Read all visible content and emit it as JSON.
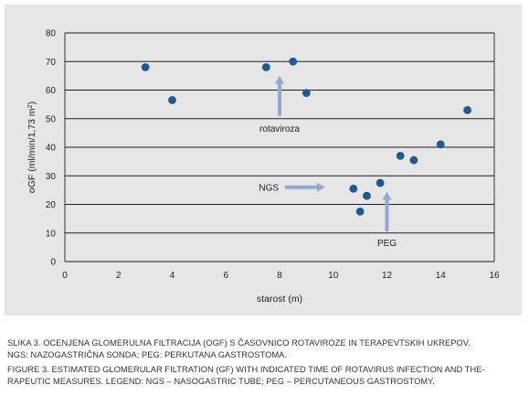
{
  "chart_data": {
    "type": "scatter",
    "xlabel": "starost (m)",
    "ylabel": "oGF (ml/min/1,73 m²)",
    "ylabel_main": "oGF (ml/min/1,73 m",
    "ylabel_sup": "2",
    "ylabel_close": ")",
    "xlim": [
      0,
      16
    ],
    "ylim": [
      0,
      80
    ],
    "x_ticks": [
      "0",
      "2",
      "4",
      "6",
      "8",
      "10",
      "12",
      "14",
      "16"
    ],
    "y_ticks": [
      "0",
      "10",
      "20",
      "30",
      "40",
      "50",
      "60",
      "70",
      "80"
    ],
    "grid": "horizontal",
    "point_color": "#1d5a94",
    "arrow_color": "#8eaad1",
    "points": [
      {
        "x": 3.0,
        "y": 68
      },
      {
        "x": 4.0,
        "y": 56.5
      },
      {
        "x": 7.5,
        "y": 68
      },
      {
        "x": 8.5,
        "y": 70
      },
      {
        "x": 9.0,
        "y": 59
      },
      {
        "x": 10.75,
        "y": 25.5
      },
      {
        "x": 11.0,
        "y": 17.5
      },
      {
        "x": 11.25,
        "y": 23
      },
      {
        "x": 11.75,
        "y": 27.5
      },
      {
        "x": 12.5,
        "y": 37
      },
      {
        "x": 13.0,
        "y": 35.5
      },
      {
        "x": 14.0,
        "y": 41
      },
      {
        "x": 15.0,
        "y": 53
      }
    ],
    "annotations": [
      {
        "label": "rotaviroza",
        "arrow": "up",
        "x": 8.0,
        "y_from": 51,
        "y_to": 65,
        "label_x": 8.0,
        "label_y": 46.5
      },
      {
        "label": "NGS",
        "arrow": "right",
        "y": 26,
        "x_from": 8.2,
        "x_to": 9.7,
        "label_x": 7.6,
        "label_y": 26
      },
      {
        "label": "PEG",
        "arrow": "up",
        "x": 12.0,
        "y_from": 10.5,
        "y_to": 24.5,
        "label_x": 12.0,
        "label_y": 6.5
      }
    ]
  },
  "caption": {
    "line1": "SLIKA 3. OCENJENA GLOMERULNA FILTRACIJA (OGF) S ČASOVNICO ROTAVIROZE IN TERAPEVTSKIH UKREPOV.",
    "line2": "NGS: NAZOGASTRIČNA SONDA; PEG: PERKUTANA GASTROSTOMA.",
    "line3": "FIGURE 3. ESTIMATED GLOMERULAR FILTRATION (GF) WITH INDICATED TIME OF ROTAVIRUS INFECTION AND THE-",
    "line4": "RAPEUTIC MEASURES. LEGEND: NGS – NASOGASTRIC TUBE; PEG – PERCUTANEOUS GASTROSTOMY."
  }
}
